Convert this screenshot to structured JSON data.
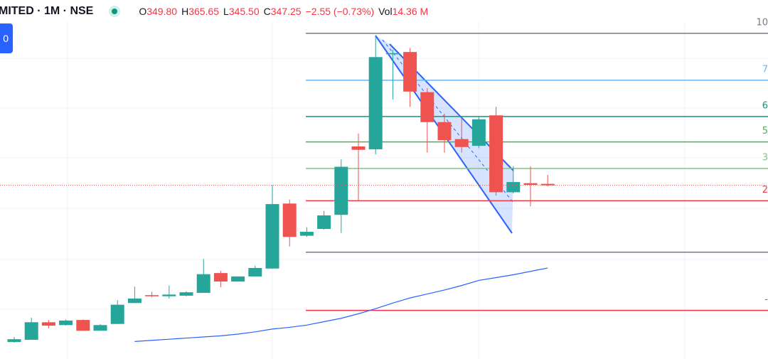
{
  "header": {
    "symbol": "MITED · 1M · NSE",
    "ohlc": [
      {
        "label": "O",
        "value": "349.80"
      },
      {
        "label": "H",
        "value": "365.65"
      },
      {
        "label": "L",
        "value": "345.50"
      },
      {
        "label": "C",
        "value": "347.25"
      }
    ],
    "change": "−2.55 (−0.73%)",
    "volume_label": "Vol",
    "volume": "14.36 M"
  },
  "button": "0",
  "chart_data": {
    "type": "candlestick",
    "categories": [
      null,
      null,
      null,
      null,
      null,
      null,
      null,
      null,
      null,
      null,
      null,
      null,
      null,
      null,
      null,
      null,
      null,
      null,
      null,
      null,
      null,
      null,
      null,
      null,
      null,
      null,
      null,
      null,
      null,
      null,
      null,
      null
    ],
    "open": [
      70,
      74,
      105,
      100,
      109,
      90,
      102,
      139,
      153,
      151,
      152,
      157,
      192,
      177,
      186,
      200,
      315,
      258,
      270,
      295,
      416,
      411,
      579,
      583,
      512,
      459,
      429,
      417,
      471,
      335,
      351,
      349.8
    ],
    "high": [
      79,
      113,
      109,
      110,
      110,
      102,
      144,
      168,
      159,
      170,
      160,
      217,
      196,
      186,
      205,
      348,
      322,
      273,
      302,
      393,
      439,
      612,
      587,
      590,
      519,
      474,
      466,
      468,
      486,
      381,
      381,
      365.65
    ],
    "low": [
      69,
      74,
      94,
      99,
      90,
      90,
      102,
      139,
      149,
      147,
      151,
      157,
      167,
      177,
      186,
      200,
      239,
      256,
      269,
      263,
      319,
      402,
      499,
      486,
      405,
      405,
      405,
      413,
      329,
      333,
      310,
      345.5
    ],
    "close": [
      75,
      105,
      99,
      108,
      90,
      100,
      136,
      147,
      151,
      154,
      158,
      190,
      177,
      186,
      201,
      314,
      256,
      265,
      294,
      380,
      410,
      574,
      581,
      513,
      459,
      427,
      415,
      464,
      335,
      353,
      348,
      347.25
    ],
    "up_color": "#26a69a",
    "down_color": "#ef5350",
    "ma": {
      "color": "#2962ff",
      "values": [
        null,
        null,
        null,
        null,
        null,
        null,
        null,
        71,
        73,
        75,
        77,
        79,
        81,
        84,
        88,
        93,
        96,
        100,
        106,
        112,
        120,
        129,
        139,
        148,
        155,
        162,
        170,
        179,
        184,
        189,
        195,
        201
      ]
    },
    "levels": [
      {
        "price": 616,
        "label": "10",
        "color": "#787b86"
      },
      {
        "price": 533,
        "label": "7",
        "color": "#64b5f6"
      },
      {
        "price": 469,
        "label": "6",
        "color": "#089981"
      },
      {
        "price": 424,
        "label": "5",
        "color": "#4caf50"
      },
      {
        "price": 377,
        "label": "3",
        "color": "#81c784"
      },
      {
        "price": 320,
        "label": "2",
        "color": "#f23645"
      },
      {
        "price": 229,
        "color": "#787b86"
      },
      {
        "price": 126,
        "label": "-",
        "color": "#f23645"
      }
    ],
    "ylim": [
      40,
      675
    ]
  }
}
